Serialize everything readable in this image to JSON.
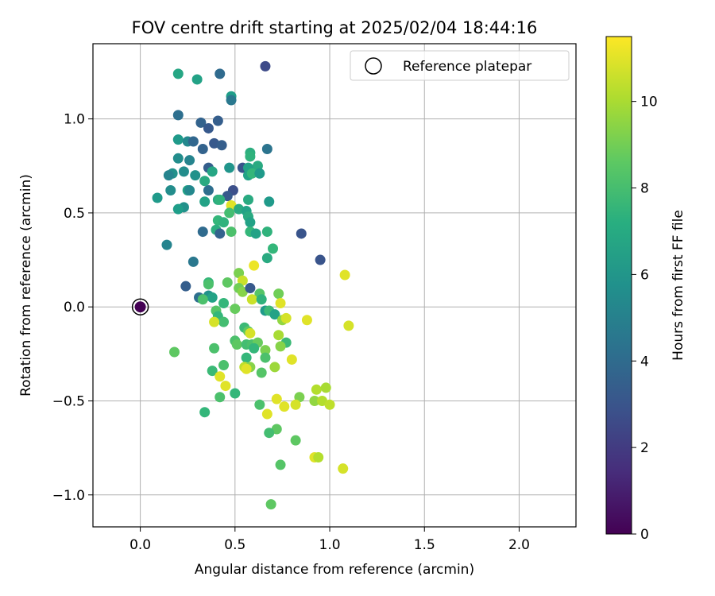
{
  "chart_data": {
    "type": "scatter",
    "title": "FOV centre drift starting at 2025/02/04 18:44:16",
    "xlabel": "Angular distance from reference (arcmin)",
    "ylabel": "Rotation from reference (arcmin)",
    "colorbar_label": "Hours from first FF file",
    "xlim": [
      -0.25,
      2.3
    ],
    "ylim": [
      -1.17,
      1.4
    ],
    "xticks": [
      0.0,
      0.5,
      1.0,
      1.5,
      2.0
    ],
    "xtick_labels": [
      "0.0",
      "0.5",
      "1.0",
      "1.5",
      "2.0"
    ],
    "yticks": [
      -1.0,
      -0.5,
      0.0,
      0.5,
      1.0
    ],
    "ytick_labels": [
      "−1.0",
      "−0.5",
      "0.0",
      "0.5",
      "1.0"
    ],
    "colorbar_range": [
      0,
      11.5
    ],
    "colorbar_ticks": [
      0,
      2,
      4,
      6,
      8,
      10
    ],
    "colorbar_tick_labels": [
      "0",
      "2",
      "4",
      "6",
      "8",
      "10"
    ],
    "colormap": "viridis",
    "grid": true,
    "legend": {
      "position": "top-right",
      "label": "Reference platepar"
    },
    "reference_point": {
      "x": 0.0,
      "y": 0.0,
      "hours": 0
    },
    "points": [
      {
        "x": 0.66,
        "y": 1.28,
        "h": 2.6
      },
      {
        "x": 0.42,
        "y": 1.24,
        "h": 4.0
      },
      {
        "x": 0.2,
        "y": 1.24,
        "h": 6.8
      },
      {
        "x": 0.3,
        "y": 1.21,
        "h": 6.6
      },
      {
        "x": 0.48,
        "y": 1.12,
        "h": 6.4
      },
      {
        "x": 0.48,
        "y": 1.1,
        "h": 4.6
      },
      {
        "x": 0.2,
        "y": 1.02,
        "h": 4.2
      },
      {
        "x": 0.32,
        "y": 0.98,
        "h": 3.6
      },
      {
        "x": 0.41,
        "y": 0.99,
        "h": 3.4
      },
      {
        "x": 0.36,
        "y": 0.95,
        "h": 3.2
      },
      {
        "x": 0.2,
        "y": 0.89,
        "h": 6.2
      },
      {
        "x": 0.25,
        "y": 0.88,
        "h": 5.4
      },
      {
        "x": 0.28,
        "y": 0.88,
        "h": 3.8
      },
      {
        "x": 0.39,
        "y": 0.87,
        "h": 3.2
      },
      {
        "x": 0.43,
        "y": 0.86,
        "h": 3.4
      },
      {
        "x": 0.33,
        "y": 0.84,
        "h": 3.6
      },
      {
        "x": 0.67,
        "y": 0.84,
        "h": 4.4
      },
      {
        "x": 0.58,
        "y": 0.82,
        "h": 7.2
      },
      {
        "x": 0.58,
        "y": 0.8,
        "h": 7.4
      },
      {
        "x": 0.2,
        "y": 0.79,
        "h": 5.6
      },
      {
        "x": 0.26,
        "y": 0.78,
        "h": 5.2
      },
      {
        "x": 0.47,
        "y": 0.74,
        "h": 6.0
      },
      {
        "x": 0.54,
        "y": 0.74,
        "h": 3.0
      },
      {
        "x": 0.36,
        "y": 0.74,
        "h": 3.4
      },
      {
        "x": 0.62,
        "y": 0.75,
        "h": 7.0
      },
      {
        "x": 0.57,
        "y": 0.74,
        "h": 6.6
      },
      {
        "x": 0.38,
        "y": 0.72,
        "h": 6.8
      },
      {
        "x": 0.23,
        "y": 0.72,
        "h": 5.6
      },
      {
        "x": 0.17,
        "y": 0.71,
        "h": 5.8
      },
      {
        "x": 0.15,
        "y": 0.7,
        "h": 5.2
      },
      {
        "x": 0.29,
        "y": 0.7,
        "h": 5.8
      },
      {
        "x": 0.57,
        "y": 0.7,
        "h": 6.6
      },
      {
        "x": 0.59,
        "y": 0.71,
        "h": 7.6
      },
      {
        "x": 0.63,
        "y": 0.71,
        "h": 6.2
      },
      {
        "x": 0.34,
        "y": 0.67,
        "h": 7.0
      },
      {
        "x": 0.16,
        "y": 0.62,
        "h": 5.6
      },
      {
        "x": 0.25,
        "y": 0.62,
        "h": 6.6
      },
      {
        "x": 0.26,
        "y": 0.62,
        "h": 5.4
      },
      {
        "x": 0.36,
        "y": 0.62,
        "h": 4.2
      },
      {
        "x": 0.49,
        "y": 0.62,
        "h": 2.8
      },
      {
        "x": 0.46,
        "y": 0.59,
        "h": 3.2
      },
      {
        "x": 0.09,
        "y": 0.58,
        "h": 6.2
      },
      {
        "x": 0.41,
        "y": 0.57,
        "h": 7.0
      },
      {
        "x": 0.42,
        "y": 0.57,
        "h": 7.4
      },
      {
        "x": 0.57,
        "y": 0.57,
        "h": 7.0
      },
      {
        "x": 0.68,
        "y": 0.56,
        "h": 6.2
      },
      {
        "x": 0.34,
        "y": 0.56,
        "h": 6.6
      },
      {
        "x": 0.48,
        "y": 0.54,
        "h": 11.0
      },
      {
        "x": 0.23,
        "y": 0.53,
        "h": 5.8
      },
      {
        "x": 0.2,
        "y": 0.52,
        "h": 6.4
      },
      {
        "x": 0.52,
        "y": 0.52,
        "h": 7.0
      },
      {
        "x": 0.56,
        "y": 0.51,
        "h": 6.6
      },
      {
        "x": 0.47,
        "y": 0.5,
        "h": 8.0
      },
      {
        "x": 0.57,
        "y": 0.48,
        "h": 7.0
      },
      {
        "x": 0.41,
        "y": 0.46,
        "h": 7.6
      },
      {
        "x": 0.44,
        "y": 0.45,
        "h": 7.4
      },
      {
        "x": 0.58,
        "y": 0.45,
        "h": 6.6
      },
      {
        "x": 0.4,
        "y": 0.41,
        "h": 7.2
      },
      {
        "x": 0.33,
        "y": 0.4,
        "h": 4.0
      },
      {
        "x": 0.48,
        "y": 0.4,
        "h": 8.2
      },
      {
        "x": 0.58,
        "y": 0.4,
        "h": 7.6
      },
      {
        "x": 0.61,
        "y": 0.39,
        "h": 6.6
      },
      {
        "x": 0.67,
        "y": 0.4,
        "h": 7.4
      },
      {
        "x": 0.42,
        "y": 0.39,
        "h": 3.6
      },
      {
        "x": 0.85,
        "y": 0.39,
        "h": 3.0
      },
      {
        "x": 0.14,
        "y": 0.33,
        "h": 5.2
      },
      {
        "x": 0.7,
        "y": 0.31,
        "h": 7.6
      },
      {
        "x": 0.67,
        "y": 0.26,
        "h": 7.0
      },
      {
        "x": 0.95,
        "y": 0.25,
        "h": 3.0
      },
      {
        "x": 0.6,
        "y": 0.22,
        "h": 11.2
      },
      {
        "x": 0.28,
        "y": 0.24,
        "h": 4.6
      },
      {
        "x": 1.08,
        "y": 0.17,
        "h": 11.0
      },
      {
        "x": 0.52,
        "y": 0.18,
        "h": 9.2
      },
      {
        "x": 0.54,
        "y": 0.14,
        "h": 10.6
      },
      {
        "x": 0.36,
        "y": 0.13,
        "h": 7.6
      },
      {
        "x": 0.36,
        "y": 0.12,
        "h": 8.2
      },
      {
        "x": 0.46,
        "y": 0.13,
        "h": 8.6
      },
      {
        "x": 0.24,
        "y": 0.11,
        "h": 3.4
      },
      {
        "x": 0.52,
        "y": 0.1,
        "h": 9.0
      },
      {
        "x": 0.54,
        "y": 0.08,
        "h": 9.4
      },
      {
        "x": 0.58,
        "y": 0.1,
        "h": 3.2
      },
      {
        "x": 0.73,
        "y": 0.07,
        "h": 9.0
      },
      {
        "x": 0.63,
        "y": 0.07,
        "h": 8.4
      },
      {
        "x": 0.31,
        "y": 0.05,
        "h": 4.2
      },
      {
        "x": 0.36,
        "y": 0.06,
        "h": 5.8
      },
      {
        "x": 0.38,
        "y": 0.05,
        "h": 6.6
      },
      {
        "x": 0.33,
        "y": 0.04,
        "h": 8.2
      },
      {
        "x": 0.59,
        "y": 0.04,
        "h": 10.6
      },
      {
        "x": 0.64,
        "y": 0.04,
        "h": 7.4
      },
      {
        "x": 0.74,
        "y": 0.02,
        "h": 11.0
      },
      {
        "x": 0.44,
        "y": 0.02,
        "h": 7.6
      },
      {
        "x": 0.4,
        "y": -0.02,
        "h": 8.4
      },
      {
        "x": 0.5,
        "y": -0.01,
        "h": 8.8
      },
      {
        "x": 0.66,
        "y": -0.02,
        "h": 6.2
      },
      {
        "x": 0.68,
        "y": -0.02,
        "h": 7.8
      },
      {
        "x": 0.71,
        "y": -0.04,
        "h": 6.6
      },
      {
        "x": 0.41,
        "y": -0.05,
        "h": 7.6
      },
      {
        "x": 0.44,
        "y": -0.08,
        "h": 8.0
      },
      {
        "x": 0.39,
        "y": -0.08,
        "h": 10.8
      },
      {
        "x": 0.75,
        "y": -0.07,
        "h": 9.6
      },
      {
        "x": 0.77,
        "y": -0.06,
        "h": 10.8
      },
      {
        "x": 0.88,
        "y": -0.07,
        "h": 11.0
      },
      {
        "x": 1.1,
        "y": -0.1,
        "h": 10.8
      },
      {
        "x": 0.55,
        "y": -0.11,
        "h": 7.8
      },
      {
        "x": 0.57,
        "y": -0.13,
        "h": 8.6
      },
      {
        "x": 0.58,
        "y": -0.14,
        "h": 10.8
      },
      {
        "x": 0.73,
        "y": -0.15,
        "h": 10.0
      },
      {
        "x": 0.77,
        "y": -0.19,
        "h": 7.8
      },
      {
        "x": 0.5,
        "y": -0.18,
        "h": 8.2
      },
      {
        "x": 0.51,
        "y": -0.2,
        "h": 8.6
      },
      {
        "x": 0.56,
        "y": -0.2,
        "h": 8.0
      },
      {
        "x": 0.59,
        "y": -0.2,
        "h": 8.2
      },
      {
        "x": 0.62,
        "y": -0.19,
        "h": 8.8
      },
      {
        "x": 0.74,
        "y": -0.21,
        "h": 9.4
      },
      {
        "x": 0.6,
        "y": -0.22,
        "h": 7.6
      },
      {
        "x": 0.66,
        "y": -0.23,
        "h": 9.2
      },
      {
        "x": 0.39,
        "y": -0.22,
        "h": 8.2
      },
      {
        "x": 0.18,
        "y": -0.24,
        "h": 8.6
      },
      {
        "x": 0.8,
        "y": -0.28,
        "h": 11.0
      },
      {
        "x": 0.56,
        "y": -0.27,
        "h": 7.6
      },
      {
        "x": 0.66,
        "y": -0.27,
        "h": 8.2
      },
      {
        "x": 0.44,
        "y": -0.31,
        "h": 8.2
      },
      {
        "x": 0.55,
        "y": -0.32,
        "h": 10.4
      },
      {
        "x": 0.58,
        "y": -0.32,
        "h": 9.4
      },
      {
        "x": 0.56,
        "y": -0.33,
        "h": 11.0
      },
      {
        "x": 0.71,
        "y": -0.32,
        "h": 9.8
      },
      {
        "x": 0.38,
        "y": -0.34,
        "h": 7.8
      },
      {
        "x": 0.64,
        "y": -0.35,
        "h": 8.4
      },
      {
        "x": 0.42,
        "y": -0.37,
        "h": 11.0
      },
      {
        "x": 0.45,
        "y": -0.42,
        "h": 11.0
      },
      {
        "x": 0.93,
        "y": -0.44,
        "h": 10.2
      },
      {
        "x": 0.98,
        "y": -0.43,
        "h": 10.0
      },
      {
        "x": 0.5,
        "y": -0.46,
        "h": 7.6
      },
      {
        "x": 0.42,
        "y": -0.48,
        "h": 8.2
      },
      {
        "x": 0.84,
        "y": -0.48,
        "h": 9.2
      },
      {
        "x": 0.72,
        "y": -0.49,
        "h": 11.0
      },
      {
        "x": 0.92,
        "y": -0.5,
        "h": 9.6
      },
      {
        "x": 0.96,
        "y": -0.5,
        "h": 10.2
      },
      {
        "x": 1.0,
        "y": -0.52,
        "h": 10.4
      },
      {
        "x": 0.82,
        "y": -0.52,
        "h": 10.8
      },
      {
        "x": 0.76,
        "y": -0.53,
        "h": 11.0
      },
      {
        "x": 0.63,
        "y": -0.52,
        "h": 8.2
      },
      {
        "x": 0.34,
        "y": -0.56,
        "h": 7.6
      },
      {
        "x": 0.67,
        "y": -0.57,
        "h": 11.0
      },
      {
        "x": 0.72,
        "y": -0.65,
        "h": 8.6
      },
      {
        "x": 0.68,
        "y": -0.67,
        "h": 8.0
      },
      {
        "x": 0.82,
        "y": -0.71,
        "h": 8.6
      },
      {
        "x": 0.92,
        "y": -0.8,
        "h": 11.0
      },
      {
        "x": 0.94,
        "y": -0.8,
        "h": 10.2
      },
      {
        "x": 0.74,
        "y": -0.84,
        "h": 8.4
      },
      {
        "x": 1.07,
        "y": -0.86,
        "h": 10.8
      },
      {
        "x": 0.69,
        "y": -1.05,
        "h": 8.6
      }
    ]
  }
}
